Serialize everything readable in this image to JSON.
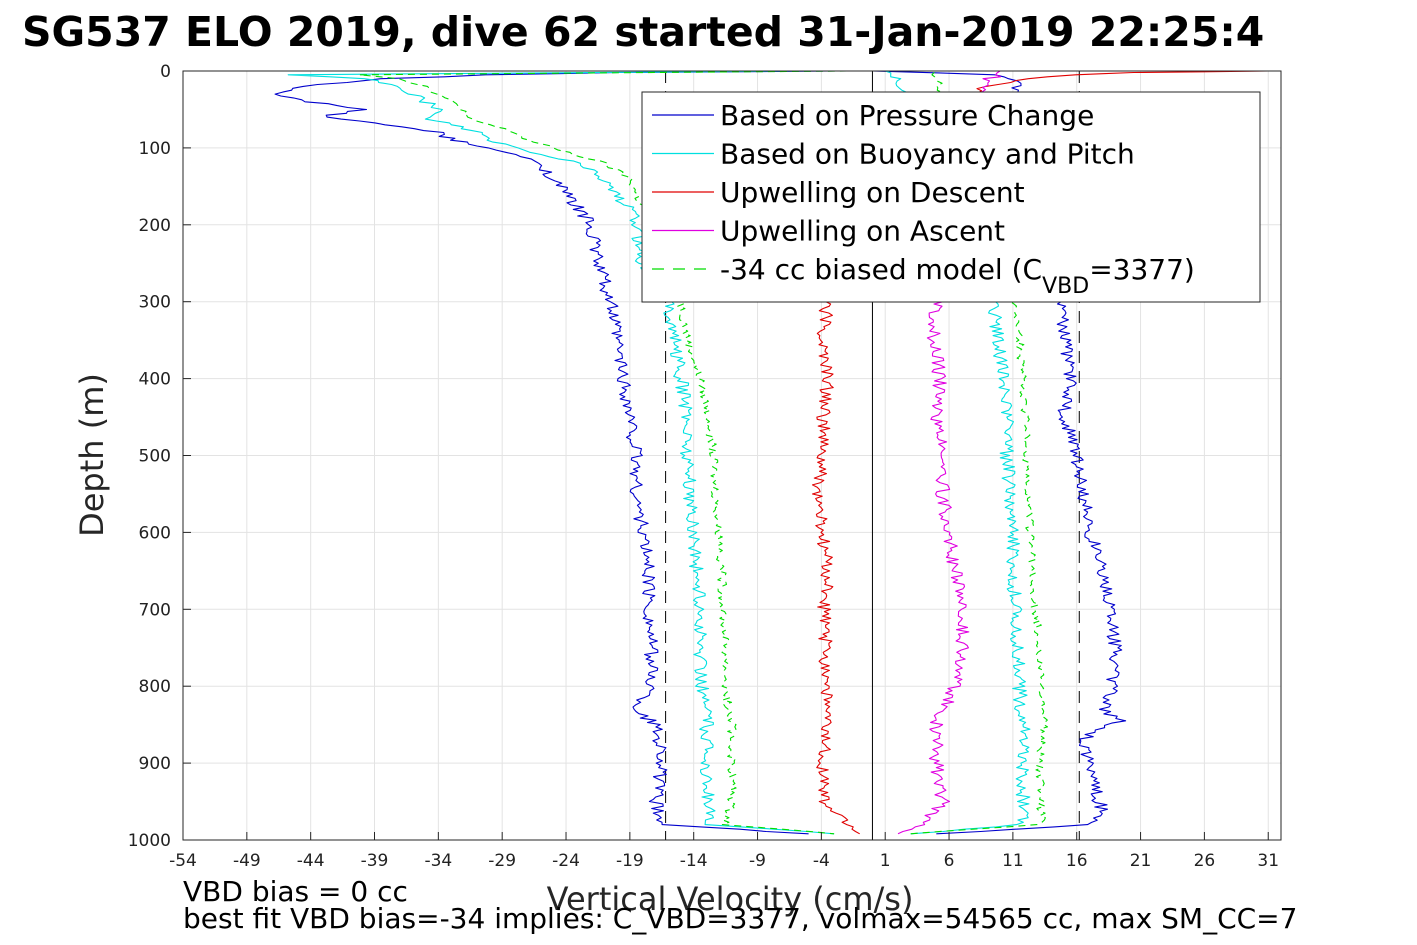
{
  "chart_data": {
    "type": "line",
    "title": "SG537 ELO 2019, dive 62 started 31-Jan-2019 22:25:4",
    "xlabel": "Vertical Velocity (cm/s)",
    "ylabel": "Depth (m)",
    "xlim": [
      -54,
      32
    ],
    "ylim": [
      1000,
      0
    ],
    "y_reversed": true,
    "grid": true,
    "legend_placement": "top-right",
    "x_ticks": [
      -54,
      -49,
      -44,
      -39,
      -34,
      -29,
      -24,
      -19,
      -14,
      -9,
      -4,
      1,
      6,
      11,
      16,
      21,
      26,
      31
    ],
    "y_ticks": [
      0,
      100,
      200,
      300,
      400,
      500,
      600,
      700,
      800,
      900,
      1000
    ],
    "reference_lines": [
      {
        "name": "zero",
        "x": 0,
        "style": "solid",
        "color": "#000000"
      },
      {
        "name": "descent-expected",
        "x": -16.2,
        "style": "dashed",
        "color": "#000000"
      },
      {
        "name": "ascent-expected",
        "x": 16.2,
        "style": "dashed",
        "color": "#000000"
      }
    ],
    "series": [
      {
        "name": "Based on Pressure Change",
        "color": "#0000cc",
        "style": "solid",
        "descent": {
          "depth": [
            0,
            2,
            5,
            10,
            20,
            30,
            40,
            50,
            60,
            70,
            80,
            90,
            100,
            120,
            140,
            160,
            180,
            200,
            250,
            300,
            350,
            400,
            450,
            500,
            550,
            600,
            650,
            700,
            750,
            800,
            830,
            850,
            880,
            900,
            950,
            980,
            992
          ],
          "velocity": [
            -3,
            -20,
            -30,
            -38,
            -45,
            -47,
            -44,
            -40,
            -43,
            -38,
            -34,
            -33,
            -30,
            -26,
            -25,
            -24,
            -23,
            -22,
            -21.5,
            -20.5,
            -20,
            -19.5,
            -19,
            -18.5,
            -18.5,
            -18,
            -17.5,
            -17.5,
            -17.3,
            -17.3,
            -18.5,
            -17,
            -16.5,
            -16.5,
            -17,
            -16.5,
            -5
          ]
        },
        "ascent": {
          "depth": [
            992,
            980,
            960,
            940,
            920,
            900,
            880,
            860,
            845,
            830,
            800,
            750,
            700,
            650,
            600,
            550,
            500,
            450,
            400,
            350,
            300,
            10,
            5,
            0
          ],
          "velocity": [
            5,
            17,
            18,
            17.5,
            17.3,
            17,
            16.5,
            17,
            19.5,
            18,
            18.8,
            19,
            18.5,
            18,
            17,
            16.5,
            16,
            15,
            15.5,
            15,
            15,
            11,
            10,
            0
          ]
        }
      },
      {
        "name": "Based on Buoyancy and Pitch",
        "color": "#00e0e0",
        "style": "solid",
        "descent": {
          "depth": [
            0,
            5,
            10,
            20,
            30,
            40,
            50,
            60,
            70,
            80,
            90,
            100,
            120,
            140,
            160,
            180,
            200,
            250,
            300,
            350,
            400,
            450,
            500,
            550,
            600,
            650,
            700,
            750,
            800,
            830,
            850,
            900,
            950,
            980,
            992
          ],
          "velocity": [
            -5,
            -46,
            -40,
            -37,
            -36,
            -35,
            -34,
            -35,
            -33,
            -31,
            -30,
            -28,
            -23,
            -21,
            -20,
            -19,
            -18.5,
            -18,
            -16,
            -15.5,
            -15,
            -14.5,
            -14.5,
            -14.3,
            -14,
            -13.8,
            -13.5,
            -13.5,
            -13.3,
            -13,
            -13,
            -13,
            -12.8,
            -13,
            -3
          ]
        },
        "ascent": {
          "depth": [
            992,
            980,
            950,
            900,
            850,
            800,
            750,
            700,
            650,
            600,
            550,
            500,
            450,
            400,
            350,
            300,
            10,
            0
          ],
          "velocity": [
            3,
            11.8,
            11.8,
            11.8,
            11.8,
            11.5,
            11.3,
            11.2,
            11,
            11,
            10.8,
            10.5,
            10.5,
            10.2,
            9.8,
            9.5,
            2,
            1
          ]
        }
      },
      {
        "name": "Upwelling on Descent",
        "color": "#e00000",
        "style": "solid",
        "descent": {
          "depth": [
            0,
            2,
            5,
            10,
            20,
            40,
            80,
            120,
            160,
            200,
            300,
            350,
            400,
            450,
            500,
            550,
            600,
            650,
            700,
            750,
            800,
            850,
            900,
            950,
            992
          ],
          "velocity": [
            31,
            20,
            16,
            12,
            9,
            7,
            6,
            5,
            4.5,
            4,
            -3.5,
            -4,
            -3.5,
            -3.8,
            -4,
            -4.3,
            -4,
            -3.5,
            -3.8,
            -3.7,
            -3.5,
            -3.7,
            -3.8,
            -3.9,
            -1
          ]
        }
      },
      {
        "name": "Upwelling on Ascent",
        "color": "#e000e0",
        "style": "solid",
        "ascent": {
          "depth": [
            992,
            980,
            950,
            900,
            850,
            800,
            750,
            700,
            650,
            600,
            550,
            500,
            450,
            400,
            350,
            300,
            200,
            100,
            50,
            10,
            5,
            0
          ],
          "velocity": [
            2,
            4,
            5.5,
            5,
            5,
            6.5,
            7,
            7,
            6.5,
            6,
            5.5,
            5.5,
            5,
            5.3,
            4.8,
            5,
            6,
            7,
            8,
            9,
            10,
            10
          ]
        }
      },
      {
        "name": "-34 cc biased model (C_VBD=3377)",
        "color": "#00dd00",
        "style": "dashed",
        "descent": {
          "depth": [
            0,
            5,
            10,
            20,
            30,
            40,
            50,
            60,
            70,
            80,
            90,
            100,
            120,
            140,
            160,
            180,
            200,
            250,
            300,
            350,
            400,
            450,
            500,
            550,
            600,
            650,
            700,
            750,
            800,
            830,
            850,
            900,
            950,
            980,
            992
          ],
          "velocity": [
            -2,
            -40,
            -37,
            -35,
            -34,
            -33,
            -32,
            -32,
            -30,
            -28,
            -27,
            -25,
            -21,
            -19,
            -18.5,
            -18,
            -17.5,
            -16.5,
            -15,
            -14.5,
            -13.5,
            -12.8,
            -12.5,
            -12.3,
            -12,
            -11.8,
            -11.7,
            -11.5,
            -11.5,
            -11.3,
            -11,
            -11,
            -11,
            -11.5,
            -3
          ]
        },
        "ascent": {
          "depth": [
            992,
            980,
            950,
            900,
            850,
            800,
            750,
            700,
            650,
            600,
            550,
            500,
            450,
            400,
            350,
            300,
            10,
            0
          ],
          "velocity": [
            3,
            13.2,
            13.2,
            13,
            13.5,
            13.2,
            13,
            12.8,
            12.5,
            12.3,
            12.3,
            12,
            12,
            11.8,
            11.5,
            11,
            5,
            5
          ]
        }
      }
    ],
    "legend_entries": [
      {
        "label": "Based on Pressure Change",
        "color": "#0000cc",
        "style": "solid"
      },
      {
        "label": "Based on Buoyancy and Pitch",
        "color": "#00e0e0",
        "style": "solid"
      },
      {
        "label": "Upwelling on Descent",
        "color": "#e00000",
        "style": "solid"
      },
      {
        "label": "Upwelling on Ascent",
        "color": "#e000e0",
        "style": "solid"
      },
      {
        "label": "-34 cc biased model (C",
        "sub": "VBD",
        "tail": "=3377)",
        "color": "#00dd00",
        "style": "dashed"
      }
    ]
  },
  "captions": {
    "line1": "VBD bias = 0 cc",
    "line2": "best fit VBD bias=-34 implies: C_VBD=3377, volmax=54565 cc, max SM_CC=7"
  }
}
